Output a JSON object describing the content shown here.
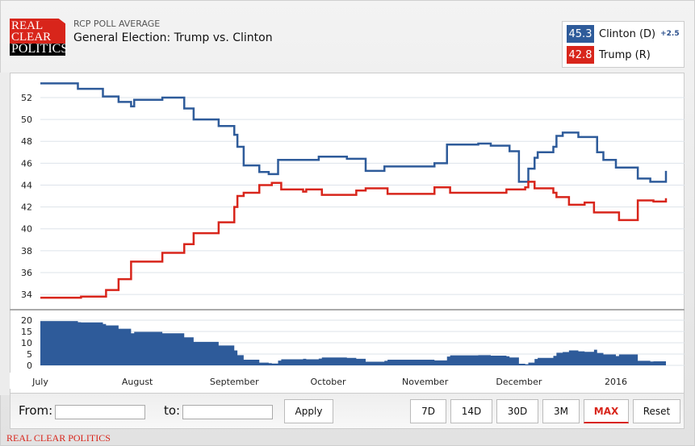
{
  "header": {
    "logo_text": [
      "REAL",
      "CLEAR",
      "POLITICS"
    ],
    "subtitle": "RCP POLL AVERAGE",
    "title": "General Election: Trump vs. Clinton"
  },
  "legend": [
    {
      "name": "Clinton (D)",
      "value": "45.3",
      "spread": "+2.5",
      "color": "#2e5b9a"
    },
    {
      "name": "Trump (R)",
      "value": "42.8",
      "color": "#d8251b"
    }
  ],
  "controls": {
    "from_label": "From:",
    "to_label": "to:",
    "from_value": "",
    "to_value": "",
    "apply": "Apply",
    "ranges": [
      "7D",
      "14D",
      "30D",
      "3M",
      "MAX",
      "Reset"
    ],
    "active_range": "MAX"
  },
  "footer": "REAL CLEAR POLITICS",
  "chart_data": [
    {
      "type": "line",
      "x_range": [
        "2015-07-01",
        "2016-01-17"
      ],
      "ylim": [
        33,
        53.5
      ],
      "y_ticks": [
        34,
        36,
        38,
        40,
        42,
        44,
        46,
        48,
        50,
        52
      ],
      "x_ticks": [
        {
          "date": "2015-07-01",
          "label": "July"
        },
        {
          "date": "2015-08-01",
          "label": "August"
        },
        {
          "date": "2015-09-01",
          "label": "September"
        },
        {
          "date": "2015-10-01",
          "label": "October"
        },
        {
          "date": "2015-11-01",
          "label": "November"
        },
        {
          "date": "2015-12-01",
          "label": "December"
        },
        {
          "date": "2016-01-01",
          "label": "2016"
        }
      ],
      "grid": true,
      "step": true,
      "series": [
        {
          "name": "Clinton (D)",
          "color": "#2e5b9a",
          "points": [
            [
              "2015-07-01",
              53.3
            ],
            [
              "2015-07-13",
              52.8
            ],
            [
              "2015-07-21",
              52.1
            ],
            [
              "2015-07-26",
              51.6
            ],
            [
              "2015-07-30",
              51.2
            ],
            [
              "2015-07-31",
              51.8
            ],
            [
              "2015-08-09",
              52.0
            ],
            [
              "2015-08-16",
              51.0
            ],
            [
              "2015-08-19",
              50.0
            ],
            [
              "2015-08-27",
              49.4
            ],
            [
              "2015-09-01",
              48.6
            ],
            [
              "2015-09-02",
              47.5
            ],
            [
              "2015-09-04",
              45.8
            ],
            [
              "2015-09-09",
              45.2
            ],
            [
              "2015-09-12",
              45.0
            ],
            [
              "2015-09-15",
              46.3
            ],
            [
              "2015-09-28",
              46.6
            ],
            [
              "2015-10-07",
              46.4
            ],
            [
              "2015-10-13",
              45.3
            ],
            [
              "2015-10-19",
              45.7
            ],
            [
              "2015-11-04",
              46.0
            ],
            [
              "2015-11-08",
              47.7
            ],
            [
              "2015-11-18",
              47.8
            ],
            [
              "2015-11-22",
              47.6
            ],
            [
              "2015-11-28",
              47.1
            ],
            [
              "2015-12-01",
              44.3
            ],
            [
              "2015-12-04",
              45.5
            ],
            [
              "2015-12-06",
              46.5
            ],
            [
              "2015-12-07",
              47.0
            ],
            [
              "2015-12-12",
              47.5
            ],
            [
              "2015-12-13",
              48.5
            ],
            [
              "2015-12-15",
              48.8
            ],
            [
              "2015-12-20",
              48.4
            ],
            [
              "2015-12-26",
              47.0
            ],
            [
              "2015-12-28",
              46.3
            ],
            [
              "2016-01-01",
              45.6
            ],
            [
              "2016-01-08",
              44.6
            ],
            [
              "2016-01-12",
              44.3
            ],
            [
              "2016-01-17",
              45.3
            ]
          ]
        },
        {
          "name": "Trump (R)",
          "color": "#d8251b",
          "points": [
            [
              "2015-07-01",
              33.7
            ],
            [
              "2015-07-14",
              33.8
            ],
            [
              "2015-07-22",
              34.4
            ],
            [
              "2015-07-26",
              35.4
            ],
            [
              "2015-07-30",
              37.0
            ],
            [
              "2015-08-09",
              37.8
            ],
            [
              "2015-08-16",
              38.6
            ],
            [
              "2015-08-19",
              39.6
            ],
            [
              "2015-08-27",
              40.6
            ],
            [
              "2015-09-01",
              42.0
            ],
            [
              "2015-09-02",
              43.0
            ],
            [
              "2015-09-04",
              43.3
            ],
            [
              "2015-09-09",
              44.0
            ],
            [
              "2015-09-13",
              44.2
            ],
            [
              "2015-09-16",
              43.6
            ],
            [
              "2015-09-23",
              43.4
            ],
            [
              "2015-09-24",
              43.6
            ],
            [
              "2015-09-29",
              43.1
            ],
            [
              "2015-10-10",
              43.5
            ],
            [
              "2015-10-13",
              43.7
            ],
            [
              "2015-10-20",
              43.2
            ],
            [
              "2015-11-04",
              43.8
            ],
            [
              "2015-11-09",
              43.3
            ],
            [
              "2015-11-27",
              43.6
            ],
            [
              "2015-12-03",
              43.8
            ],
            [
              "2015-12-04",
              44.3
            ],
            [
              "2015-12-06",
              43.7
            ],
            [
              "2015-12-12",
              43.3
            ],
            [
              "2015-12-13",
              42.9
            ],
            [
              "2015-12-17",
              42.2
            ],
            [
              "2015-12-22",
              42.4
            ],
            [
              "2015-12-25",
              41.5
            ],
            [
              "2016-01-02",
              40.8
            ],
            [
              "2016-01-08",
              42.6
            ],
            [
              "2016-01-13",
              42.5
            ],
            [
              "2016-01-17",
              42.8
            ]
          ]
        }
      ]
    },
    {
      "type": "area",
      "description_of_values": "spread",
      "ylim": [
        0,
        21
      ],
      "y_ticks": [
        0,
        5,
        10,
        15,
        20
      ],
      "color": "#2e5b9a",
      "derived_from": [
        "Clinton (D)",
        "Trump (R)"
      ]
    }
  ]
}
